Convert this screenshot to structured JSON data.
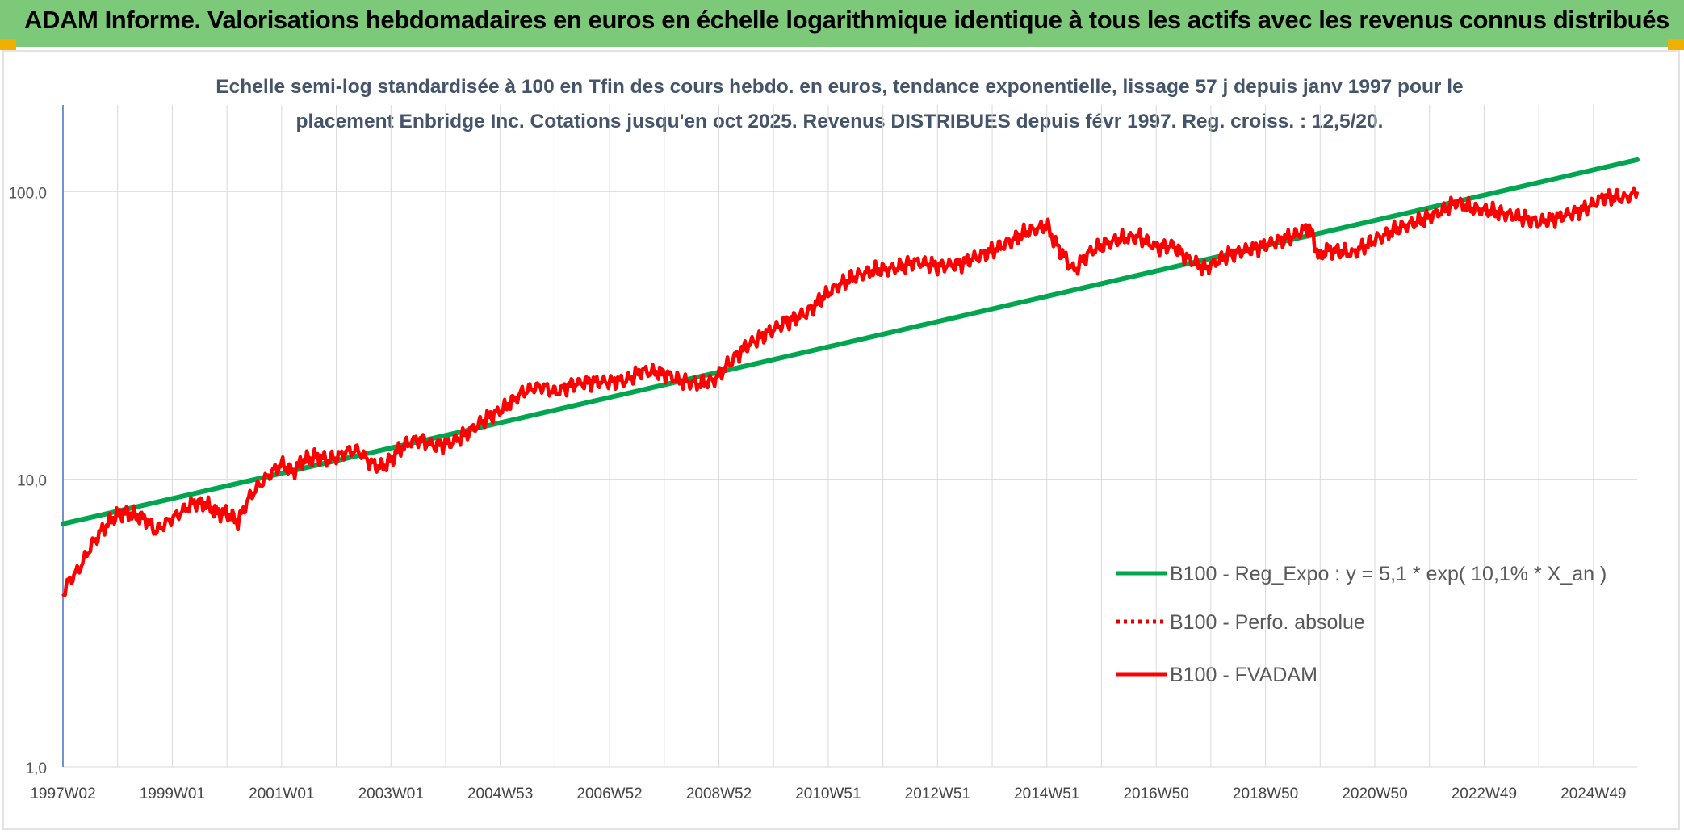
{
  "header": {
    "title": "ADAM Informe. Valorisations hebdomadaires en euros en échelle logarithmique identique à tous les actifs avec les revenus connus distribués",
    "banner_color": "#7dc97a",
    "corner_color": "#f0b000"
  },
  "chart_data": {
    "type": "line",
    "title": "Echelle semi-log standardisée à 100 en Tfin des cours hebdo. en euros, tendance exponentielle, lissage 57 j depuis janv 1997 pour le placement Enbridge Inc. Cotations jusqu'en oct 2025. Revenus DISTRIBUES depuis févr 1997. Reg. croiss. : 12,5/20.",
    "y_scale": "log",
    "ylim": [
      1,
      200
    ],
    "y_ticks": [
      "1,0",
      "10,0",
      "100,0"
    ],
    "y_tick_values": [
      1,
      10,
      100
    ],
    "x_range": [
      1997.0,
      2025.8
    ],
    "x_tick_labels": [
      "1997W02",
      "1999W01",
      "2001W01",
      "2003W01",
      "2004W53",
      "2006W52",
      "2008W52",
      "2010W51",
      "2012W51",
      "2014W51",
      "2016W50",
      "2018W50",
      "2020W50",
      "2022W49",
      "2024W49"
    ],
    "x_tick_years": [
      1997.0,
      1999.0,
      2001.0,
      2003.0,
      2005.0,
      2007.0,
      2009.0,
      2011.0,
      2013.0,
      2015.0,
      2017.0,
      2019.0,
      2021.0,
      2023.0,
      2025.0
    ],
    "grid": true,
    "legend_position": "bottom-right",
    "colors": {
      "regression": "#00a550",
      "absolute": "#e00000",
      "fvadam": "#ff0000",
      "grid": "#d9d9d9",
      "axis": "#4472c4"
    },
    "series": [
      {
        "name": "B100 - Reg_Expo : y = 5,1 * exp( 10,1% *  X_an )",
        "style": "solid",
        "x": [
          1997.0,
          2025.8
        ],
        "y": [
          7.0,
          129
        ]
      },
      {
        "name": "B100 - Perfo. absolue",
        "style": "dotted",
        "x": [],
        "y": []
      },
      {
        "name": "B100 - FVADAM",
        "style": "solid",
        "x": [
          1997.0,
          1997.1,
          1997.3,
          1997.5,
          1997.7,
          1997.9,
          1998.1,
          1998.3,
          1998.5,
          1998.7,
          1998.9,
          1999.0,
          1999.2,
          1999.4,
          1999.6,
          1999.8,
          2000.0,
          2000.2,
          2000.4,
          2000.6,
          2000.8,
          2001.0,
          2001.2,
          2001.4,
          2001.6,
          2001.8,
          2002.0,
          2002.2,
          2002.4,
          2002.6,
          2002.8,
          2003.0,
          2003.2,
          2003.5,
          2003.8,
          2004.1,
          2004.4,
          2004.8,
          2005.1,
          2005.4,
          2005.6,
          2005.8,
          2006.0,
          2006.3,
          2006.6,
          2007.0,
          2007.3,
          2007.6,
          2008.0,
          2008.3,
          2008.6,
          2008.9,
          2009.2,
          2009.5,
          2009.8,
          2010.2,
          2010.6,
          2011.0,
          2011.4,
          2011.8,
          2012.2,
          2012.6,
          2013.0,
          2013.4,
          2013.8,
          2014.2,
          2014.6,
          2015.0,
          2015.2,
          2015.5,
          2015.8,
          2016.1,
          2016.4,
          2016.7,
          2017.0,
          2017.3,
          2017.6,
          2017.9,
          2018.3,
          2018.7,
          2019.1,
          2019.5,
          2019.8,
          2020.0,
          2020.1,
          2020.3,
          2020.6,
          2021.0,
          2021.4,
          2021.8,
          2022.2,
          2022.5,
          2022.8,
          2023.2,
          2023.6,
          2024.0,
          2024.4,
          2024.8,
          2025.2,
          2025.6,
          2025.8
        ],
        "y": [
          4.0,
          4.4,
          4.9,
          5.8,
          6.6,
          7.3,
          7.7,
          7.5,
          7.3,
          6.6,
          7.1,
          7.3,
          7.8,
          8.3,
          8.2,
          7.7,
          7.6,
          7.1,
          8.6,
          9.6,
          10.5,
          11.3,
          10.6,
          11.6,
          12.0,
          11.7,
          11.9,
          12.5,
          12.6,
          11.5,
          11.0,
          11.6,
          13.0,
          13.8,
          13.1,
          13.4,
          14.5,
          16.5,
          17.8,
          20.0,
          20.8,
          21.0,
          20.0,
          21.3,
          21.8,
          21.8,
          22.0,
          23.8,
          23.3,
          22.0,
          21.5,
          22.0,
          25.5,
          29.0,
          31.5,
          35.0,
          37.8,
          44.5,
          50.0,
          53.0,
          54.0,
          57.0,
          55.0,
          56.0,
          60.0,
          65.0,
          72.0,
          76.0,
          64.0,
          53.0,
          62.0,
          66.0,
          69.0,
          69.5,
          64.0,
          65.0,
          58.0,
          54.0,
          60.0,
          63.0,
          66.0,
          70.0,
          75.0,
          58.0,
          63.0,
          62.0,
          61.0,
          68.0,
          74.0,
          79.0,
          85.0,
          92.0,
          87.0,
          85.0,
          82.0,
          78.0,
          82.0,
          86.0,
          96.0,
          95.0,
          100.0
        ]
      }
    ]
  }
}
